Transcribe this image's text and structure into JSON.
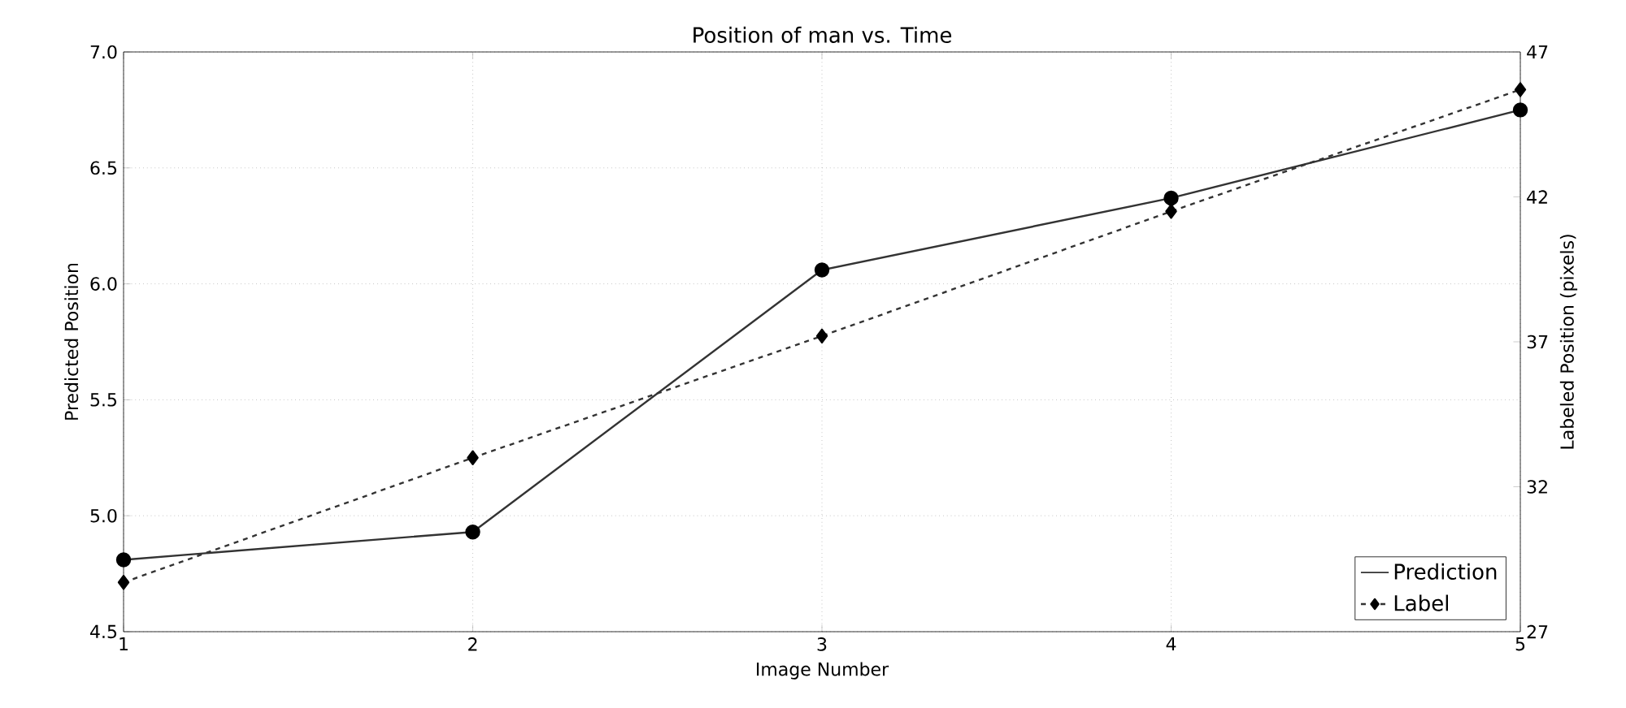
{
  "chart_data": {
    "type": "line",
    "title": "Position of man vs. Time",
    "xlabel": "Image Number",
    "ylabel": "Predicted Position",
    "y2label": "Labeled Position (pixels)",
    "x": [
      1,
      2,
      3,
      4,
      5
    ],
    "series": [
      {
        "name": "Prediction",
        "color": "#333333",
        "values": [
          4.81,
          4.93,
          6.06,
          6.37,
          6.75
        ],
        "marker": "circle",
        "line_style": "solid"
      },
      {
        "name": "Label",
        "color": "#333333",
        "values": [
          28.7,
          33.0,
          37.2,
          41.5,
          45.7
        ],
        "marker": "diamond",
        "line_style": "dashed",
        "axis": "y2"
      }
    ],
    "xlim": [
      1,
      5
    ],
    "xticks": [
      1,
      2,
      3,
      4,
      5
    ],
    "ylim": [
      4.5,
      7.0
    ],
    "yticks": [
      {
        "value": 4.5,
        "label": "4.5"
      },
      {
        "value": 5.0,
        "label": "5.0"
      },
      {
        "value": 5.5,
        "label": "5.5"
      },
      {
        "value": 6.0,
        "label": "6.0"
      },
      {
        "value": 6.5,
        "label": "6.5"
      },
      {
        "value": 7.0,
        "label": "7.0"
      }
    ],
    "y2lim": [
      27,
      47
    ],
    "y2ticks": [
      27,
      32,
      37,
      42,
      47
    ],
    "grid": true,
    "legend": "bottom right"
  }
}
